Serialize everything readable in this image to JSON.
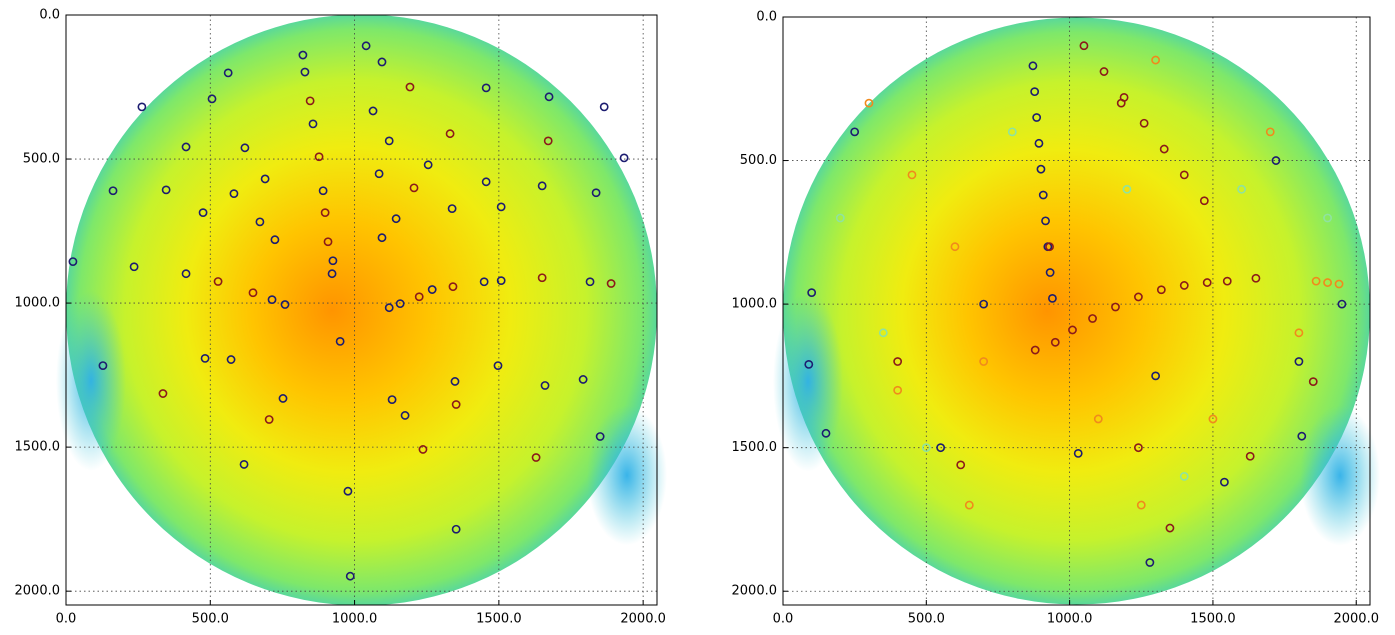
{
  "chart_data": [
    {
      "type": "scatter",
      "grid": true,
      "xlim": [
        0,
        2048
      ],
      "ylim": [
        2048,
        0
      ],
      "xticks": [
        {
          "value": 0,
          "label": "0.0"
        },
        {
          "value": 500,
          "label": "500.0"
        },
        {
          "value": 1000,
          "label": "1000.0"
        },
        {
          "value": 1500,
          "label": "1500.0"
        },
        {
          "value": 2000,
          "label": "2000.0"
        }
      ],
      "yticks": [
        {
          "value": 0,
          "label": "0.0"
        },
        {
          "value": 500,
          "label": "500.0"
        },
        {
          "value": 1000,
          "label": "1000.0"
        },
        {
          "value": 1500,
          "label": "1500.0"
        },
        {
          "value": 2000,
          "label": "2000.0"
        }
      ],
      "series": [
        {
          "color": "#1c1c70",
          "x": [
            821,
            828,
            1040,
            1095,
            562,
            263,
            1865,
            1934,
            416,
            506,
            620,
            856,
            1064,
            1456,
            1674,
            1120,
            1255,
            163,
            347,
            582,
            690,
            891,
            1085,
            1456,
            1650,
            1837,
            475,
            672,
            1144,
            1338,
            1508,
            1095,
            724,
            925,
            922,
            236,
            416,
            24,
            714,
            759,
            1449,
            1508,
            1816,
            1269,
            1158,
            1120,
            950,
            128,
            482,
            572,
            1497,
            1660,
            1792,
            752,
            1130,
            1348,
            1175,
            1851,
            617,
            977,
            1352,
            985
          ],
          "values": [
            139,
            198,
            107,
            163,
            201,
            319,
            319,
            496,
            458,
            291,
            461,
            378,
            333,
            253,
            284,
            437,
            520,
            610,
            607,
            620,
            569,
            610,
            551,
            579,
            593,
            617,
            686,
            718,
            707,
            672,
            666,
            773,
            780,
            853,
            898,
            874,
            898,
            856,
            988,
            1005,
            926,
            922,
            926,
            953,
            1002,
            1016,
            1133,
            1217,
            1192,
            1196,
            1217,
            1286,
            1265,
            1331,
            1335,
            1272,
            1390,
            1463,
            1560,
            1653,
            1785,
            1948
          ]
        },
        {
          "color": "#8b1a1a",
          "x": [
            846,
            1192,
            1671,
            1331,
            877,
            1206,
            898,
            908,
            527,
            648,
            1341,
            1650,
            1889,
            1224,
            336,
            1352,
            704,
            1237,
            1629
          ],
          "values": [
            298,
            250,
            437,
            412,
            492,
            600,
            686,
            787,
            925,
            964,
            943,
            912,
            932,
            978,
            1314,
            1352,
            1404,
            1508,
            1536
          ]
        }
      ]
    },
    {
      "type": "scatter",
      "grid": true,
      "xlim": [
        0,
        2048
      ],
      "ylim": [
        2048,
        0
      ],
      "xticks": [
        {
          "value": 0,
          "label": "0.0"
        },
        {
          "value": 500,
          "label": "500.0"
        },
        {
          "value": 1000,
          "label": "1000.0"
        },
        {
          "value": 1500,
          "label": "1500.0"
        },
        {
          "value": 2000,
          "label": "2000.0"
        }
      ],
      "yticks": [
        {
          "value": 0,
          "label": "0.0"
        },
        {
          "value": 500,
          "label": "500.0"
        },
        {
          "value": 1000,
          "label": "1000.0"
        },
        {
          "value": 1500,
          "label": "1500.0"
        },
        {
          "value": 2000,
          "label": "2000.0"
        }
      ],
      "series": [
        {
          "color": "#1c1c70",
          "x": [
            872,
            878,
            885,
            893,
            900,
            908,
            916,
            924,
            932,
            940,
            90,
            150,
            1810,
            1540,
            1030,
            1280,
            550,
            1720,
            250,
            1950,
            100,
            1800,
            1300,
            700
          ],
          "values": [
            170,
            260,
            350,
            440,
            530,
            620,
            710,
            800,
            890,
            980,
            1210,
            1450,
            1460,
            1620,
            1520,
            1900,
            1500,
            500,
            400,
            1000,
            960,
            1200,
            1250,
            1000
          ]
        },
        {
          "color": "#8b1a1a",
          "x": [
            1050,
            1120,
            1190,
            1260,
            1330,
            1400,
            1470,
            1010,
            1080,
            1160,
            1240,
            1320,
            1400,
            1480,
            1550,
            950,
            880,
            620,
            1240,
            1630,
            1350,
            1650,
            930,
            1180,
            1850,
            400
          ],
          "values": [
            100,
            190,
            280,
            370,
            460,
            550,
            640,
            1090,
            1050,
            1010,
            975,
            950,
            935,
            925,
            920,
            1133,
            1160,
            1560,
            1500,
            1530,
            1780,
            910,
            800,
            300,
            1270,
            1200
          ]
        },
        {
          "color": "#f08a1c",
          "x": [
            1860,
            1900,
            1940,
            300,
            450,
            600,
            1300,
            1700,
            1800,
            400,
            650,
            1250,
            1500,
            700,
            1100
          ],
          "values": [
            920,
            925,
            930,
            300,
            550,
            800,
            150,
            400,
            1100,
            1300,
            1700,
            1700,
            1400,
            1200,
            1400
          ]
        },
        {
          "color": "#8fe3a0",
          "x": [
            200,
            500,
            1600,
            1900,
            1400,
            800,
            1200,
            350
          ],
          "values": [
            700,
            1500,
            600,
            700,
            1600,
            400,
            600,
            1100
          ]
        }
      ]
    }
  ]
}
